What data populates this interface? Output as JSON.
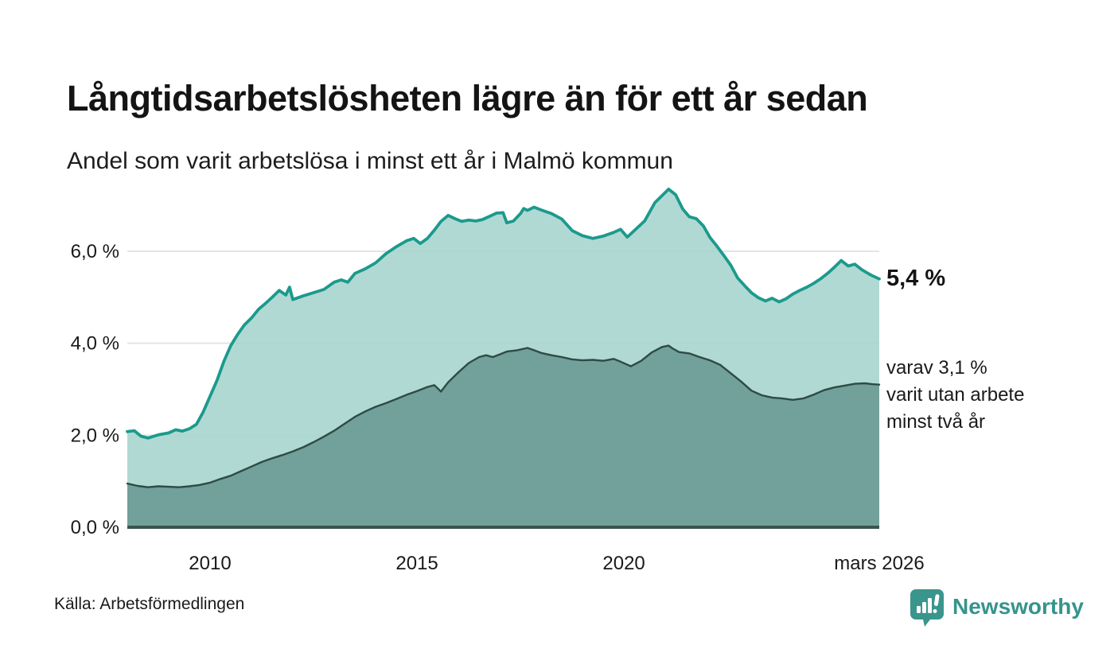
{
  "header": {
    "title": "Långtidsarbetslösheten lägre än för ett år sedan",
    "subtitle": "Andel som varit arbetslösa i minst ett år i Malmö kommun"
  },
  "annotations": {
    "total_label": "5,4 %",
    "sub_label": "varav 3,1 %\nvarit utan arbete\nminst två år"
  },
  "footer": {
    "source": "Källa: Arbetsförmedlingen",
    "brand_name": "Newsworthy",
    "brand_color": "#35948b"
  },
  "chart_data": {
    "type": "area",
    "title": "Långtidsarbetslösheten lägre än för ett år sedan",
    "subtitle": "Andel som varit arbetslösa i minst ett år i Malmö kommun",
    "x_unit": "decimal_year",
    "x_range": [
      2008.0,
      2026.17
    ],
    "ylim": [
      0,
      7.6
    ],
    "grid": "horizontal",
    "legend_position": "right-edge-annotations",
    "gridline_color": "#e4e4e4",
    "baseline_color": "#3a534e",
    "y_ticks": [
      {
        "value": 0,
        "label": "0,0 %"
      },
      {
        "value": 2,
        "label": "2,0 %"
      },
      {
        "value": 4,
        "label": "4,0 %"
      },
      {
        "value": 6,
        "label": "6,0 %"
      }
    ],
    "x_ticks": [
      {
        "year": 2010,
        "label": "2010"
      },
      {
        "year": 2015,
        "label": "2015"
      },
      {
        "year": 2020,
        "label": "2020"
      },
      {
        "year": 2026.17,
        "label": "mars 2026"
      }
    ],
    "series": [
      {
        "name": "Andel arbetslösa minst ett år",
        "end_value_label": "5,4 %",
        "line_color": "#1b9a8c",
        "fill_color": "#abd6d0",
        "line_width": 3.8,
        "fill_opacity": 0.93,
        "points": [
          [
            2008.0,
            2.08
          ],
          [
            2008.17,
            2.1
          ],
          [
            2008.33,
            1.98
          ],
          [
            2008.5,
            1.94
          ],
          [
            2008.75,
            2.01
          ],
          [
            2009.0,
            2.05
          ],
          [
            2009.17,
            2.12
          ],
          [
            2009.33,
            2.09
          ],
          [
            2009.5,
            2.14
          ],
          [
            2009.67,
            2.24
          ],
          [
            2009.83,
            2.5
          ],
          [
            2010.0,
            2.85
          ],
          [
            2010.17,
            3.2
          ],
          [
            2010.33,
            3.6
          ],
          [
            2010.5,
            3.95
          ],
          [
            2010.67,
            4.2
          ],
          [
            2010.83,
            4.4
          ],
          [
            2011.0,
            4.55
          ],
          [
            2011.17,
            4.74
          ],
          [
            2011.33,
            4.86
          ],
          [
            2011.5,
            5.0
          ],
          [
            2011.67,
            5.15
          ],
          [
            2011.83,
            5.05
          ],
          [
            2011.92,
            5.22
          ],
          [
            2012.0,
            4.95
          ],
          [
            2012.25,
            5.03
          ],
          [
            2012.5,
            5.1
          ],
          [
            2012.75,
            5.17
          ],
          [
            2013.0,
            5.33
          ],
          [
            2013.17,
            5.38
          ],
          [
            2013.33,
            5.33
          ],
          [
            2013.5,
            5.52
          ],
          [
            2013.75,
            5.62
          ],
          [
            2014.0,
            5.75
          ],
          [
            2014.25,
            5.95
          ],
          [
            2014.5,
            6.1
          ],
          [
            2014.75,
            6.23
          ],
          [
            2014.92,
            6.28
          ],
          [
            2015.08,
            6.17
          ],
          [
            2015.25,
            6.28
          ],
          [
            2015.42,
            6.46
          ],
          [
            2015.58,
            6.65
          ],
          [
            2015.75,
            6.78
          ],
          [
            2015.92,
            6.71
          ],
          [
            2016.08,
            6.65
          ],
          [
            2016.25,
            6.68
          ],
          [
            2016.42,
            6.66
          ],
          [
            2016.58,
            6.69
          ],
          [
            2016.75,
            6.76
          ],
          [
            2016.92,
            6.83
          ],
          [
            2017.08,
            6.84
          ],
          [
            2017.17,
            6.62
          ],
          [
            2017.33,
            6.66
          ],
          [
            2017.5,
            6.82
          ],
          [
            2017.58,
            6.93
          ],
          [
            2017.67,
            6.89
          ],
          [
            2017.83,
            6.96
          ],
          [
            2018.0,
            6.9
          ],
          [
            2018.25,
            6.82
          ],
          [
            2018.5,
            6.7
          ],
          [
            2018.75,
            6.45
          ],
          [
            2019.0,
            6.34
          ],
          [
            2019.25,
            6.28
          ],
          [
            2019.5,
            6.33
          ],
          [
            2019.75,
            6.41
          ],
          [
            2019.92,
            6.48
          ],
          [
            2020.08,
            6.31
          ],
          [
            2020.25,
            6.45
          ],
          [
            2020.5,
            6.66
          ],
          [
            2020.75,
            7.06
          ],
          [
            2021.0,
            7.28
          ],
          [
            2021.08,
            7.35
          ],
          [
            2021.25,
            7.23
          ],
          [
            2021.42,
            6.92
          ],
          [
            2021.58,
            6.75
          ],
          [
            2021.75,
            6.71
          ],
          [
            2021.92,
            6.55
          ],
          [
            2022.08,
            6.3
          ],
          [
            2022.25,
            6.11
          ],
          [
            2022.42,
            5.9
          ],
          [
            2022.58,
            5.7
          ],
          [
            2022.75,
            5.42
          ],
          [
            2022.92,
            5.25
          ],
          [
            2023.08,
            5.1
          ],
          [
            2023.25,
            4.99
          ],
          [
            2023.42,
            4.92
          ],
          [
            2023.58,
            4.98
          ],
          [
            2023.75,
            4.9
          ],
          [
            2023.92,
            4.97
          ],
          [
            2024.08,
            5.07
          ],
          [
            2024.25,
            5.15
          ],
          [
            2024.42,
            5.22
          ],
          [
            2024.58,
            5.3
          ],
          [
            2024.75,
            5.4
          ],
          [
            2024.92,
            5.52
          ],
          [
            2025.08,
            5.65
          ],
          [
            2025.25,
            5.8
          ],
          [
            2025.42,
            5.68
          ],
          [
            2025.58,
            5.72
          ],
          [
            2025.75,
            5.6
          ],
          [
            2025.92,
            5.51
          ],
          [
            2026.0,
            5.47
          ],
          [
            2026.17,
            5.4
          ]
        ]
      },
      {
        "name": "varav utan arbete minst två år",
        "end_value_label": "3,1 %",
        "line_color": "#2e4b46",
        "fill_color": "#6f9e99",
        "line_width": 2.4,
        "fill_opacity": 0.97,
        "points": [
          [
            2008.0,
            0.95
          ],
          [
            2008.25,
            0.9
          ],
          [
            2008.5,
            0.87
          ],
          [
            2008.75,
            0.89
          ],
          [
            2009.0,
            0.88
          ],
          [
            2009.25,
            0.87
          ],
          [
            2009.5,
            0.89
          ],
          [
            2009.75,
            0.92
          ],
          [
            2010.0,
            0.97
          ],
          [
            2010.25,
            1.05
          ],
          [
            2010.5,
            1.12
          ],
          [
            2010.75,
            1.22
          ],
          [
            2011.0,
            1.32
          ],
          [
            2011.25,
            1.42
          ],
          [
            2011.5,
            1.5
          ],
          [
            2011.75,
            1.57
          ],
          [
            2012.0,
            1.65
          ],
          [
            2012.25,
            1.74
          ],
          [
            2012.5,
            1.85
          ],
          [
            2012.75,
            1.97
          ],
          [
            2013.0,
            2.1
          ],
          [
            2013.25,
            2.25
          ],
          [
            2013.5,
            2.4
          ],
          [
            2013.75,
            2.52
          ],
          [
            2014.0,
            2.62
          ],
          [
            2014.25,
            2.7
          ],
          [
            2014.5,
            2.79
          ],
          [
            2014.75,
            2.88
          ],
          [
            2015.0,
            2.96
          ],
          [
            2015.25,
            3.05
          ],
          [
            2015.42,
            3.09
          ],
          [
            2015.58,
            2.95
          ],
          [
            2015.75,
            3.15
          ],
          [
            2016.0,
            3.37
          ],
          [
            2016.25,
            3.57
          ],
          [
            2016.5,
            3.7
          ],
          [
            2016.67,
            3.74
          ],
          [
            2016.83,
            3.7
          ],
          [
            2017.0,
            3.76
          ],
          [
            2017.17,
            3.82
          ],
          [
            2017.42,
            3.85
          ],
          [
            2017.67,
            3.9
          ],
          [
            2017.83,
            3.85
          ],
          [
            2018.0,
            3.79
          ],
          [
            2018.25,
            3.74
          ],
          [
            2018.5,
            3.7
          ],
          [
            2018.75,
            3.65
          ],
          [
            2019.0,
            3.63
          ],
          [
            2019.25,
            3.64
          ],
          [
            2019.5,
            3.62
          ],
          [
            2019.75,
            3.66
          ],
          [
            2019.92,
            3.6
          ],
          [
            2020.17,
            3.5
          ],
          [
            2020.42,
            3.62
          ],
          [
            2020.67,
            3.8
          ],
          [
            2020.92,
            3.92
          ],
          [
            2021.08,
            3.95
          ],
          [
            2021.17,
            3.89
          ],
          [
            2021.33,
            3.81
          ],
          [
            2021.58,
            3.78
          ],
          [
            2021.83,
            3.7
          ],
          [
            2022.08,
            3.63
          ],
          [
            2022.33,
            3.53
          ],
          [
            2022.58,
            3.35
          ],
          [
            2022.83,
            3.17
          ],
          [
            2023.08,
            2.97
          ],
          [
            2023.33,
            2.87
          ],
          [
            2023.58,
            2.82
          ],
          [
            2023.83,
            2.8
          ],
          [
            2024.08,
            2.77
          ],
          [
            2024.33,
            2.8
          ],
          [
            2024.58,
            2.88
          ],
          [
            2024.83,
            2.98
          ],
          [
            2025.08,
            3.04
          ],
          [
            2025.33,
            3.08
          ],
          [
            2025.58,
            3.12
          ],
          [
            2025.83,
            3.13
          ],
          [
            2026.0,
            3.11
          ],
          [
            2026.17,
            3.1
          ]
        ]
      }
    ]
  }
}
